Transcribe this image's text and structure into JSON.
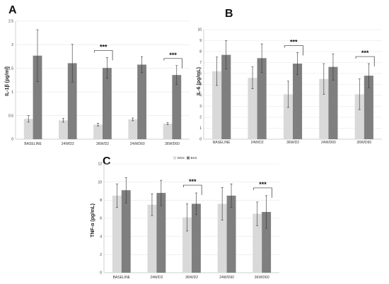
{
  "chart_data": [
    {
      "panel": "A",
      "type": "bar",
      "ylabel": "IL-1β (pg/ml)",
      "categories": [
        "BASELINE",
        "24W/D2",
        "36W/D2",
        "24W/D60",
        "36W/D60"
      ],
      "ylim": [
        0,
        2.5
      ],
      "yticks": [
        0,
        0.5,
        1,
        1.5,
        2,
        2.5
      ],
      "series": [
        {
          "color": "#d9d9d9",
          "values": [
            0.43,
            0.4,
            0.31,
            0.42,
            0.33
          ],
          "errors": [
            0.07,
            0.04,
            0.03,
            0.03,
            0.02
          ]
        },
        {
          "color": "#7f7f7f",
          "values": [
            1.77,
            1.61,
            1.51,
            1.58,
            1.36
          ],
          "errors": [
            0.55,
            0.4,
            0.22,
            0.17,
            0.2
          ]
        }
      ],
      "significance": [
        {
          "category_index": 2,
          "label": "***"
        },
        {
          "category_index": 4,
          "label": "***"
        }
      ]
    },
    {
      "panel": "B",
      "type": "bar",
      "ylabel": "IL-6 (pg/mL)",
      "categories": [
        "BASELINE",
        "24W/D2",
        "36W/D2",
        "24W/D60",
        "36W/D60"
      ],
      "ylim": [
        0,
        10
      ],
      "yticks": [
        0,
        1,
        2,
        3,
        4,
        5,
        6,
        7,
        8,
        9,
        10
      ],
      "series": [
        {
          "color": "#d9d9d9",
          "values": [
            6.2,
            5.6,
            4.1,
            5.5,
            4.1
          ],
          "errors": [
            1.3,
            1.0,
            1.2,
            1.4,
            1.4
          ]
        },
        {
          "color": "#7f7f7f",
          "values": [
            7.7,
            7.4,
            6.9,
            6.6,
            5.8
          ],
          "errors": [
            1.3,
            1.3,
            1.0,
            1.2,
            1.1
          ]
        }
      ],
      "significance": [
        {
          "category_index": 2,
          "label": "***"
        },
        {
          "category_index": 4,
          "label": "***"
        }
      ]
    },
    {
      "panel": "C",
      "type": "bar",
      "ylabel": "TNF-α (pg/mL)",
      "categories": [
        "BASELINE",
        "24W/D2",
        "36W/D2",
        "24W/D60",
        "36W/D60"
      ],
      "ylim": [
        0,
        12
      ],
      "yticks": [
        0,
        2,
        4,
        6,
        8,
        10,
        12
      ],
      "legend": {
        "placement": "top",
        "entries": [
          {
            "name": "WSS",
            "color": "#d9d9d9"
          },
          {
            "name": "BSS",
            "color": "#7f7f7f"
          }
        ]
      },
      "series": [
        {
          "name": "WSS",
          "color": "#d9d9d9",
          "values": [
            8.5,
            7.5,
            6.1,
            7.6,
            6.5
          ],
          "errors": [
            1.3,
            1.2,
            1.5,
            1.8,
            1.3
          ]
        },
        {
          "name": "BSS",
          "color": "#7f7f7f",
          "values": [
            9.1,
            8.8,
            7.6,
            8.5,
            6.7
          ],
          "errors": [
            1.4,
            1.4,
            1.2,
            1.3,
            1.8
          ]
        }
      ],
      "significance": [
        {
          "category_index": 2,
          "label": "***"
        },
        {
          "category_index": 4,
          "label": "***"
        }
      ]
    }
  ]
}
